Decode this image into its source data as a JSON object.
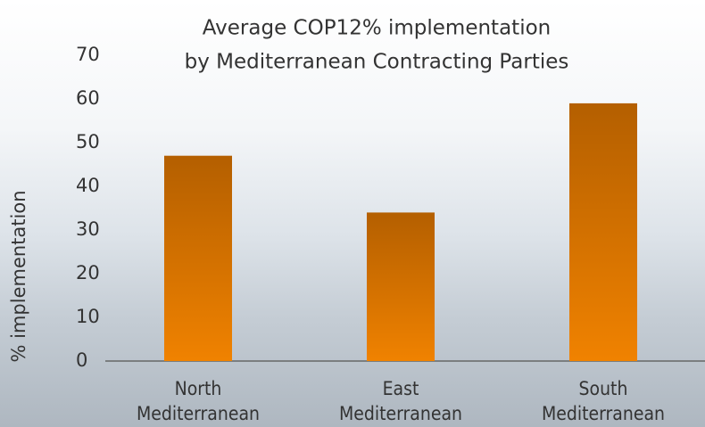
{
  "chart_data": {
    "type": "bar",
    "title": "Average COP12% implementation",
    "subtitle": "by Mediterranean Contracting Parties",
    "y_label": "% implementation",
    "categories": [
      "North Mediterranean",
      "East Mediterranean",
      "South Mediterranean"
    ],
    "values": [
      47,
      34,
      59
    ],
    "color": "#d97300",
    "ylim": [
      0,
      70
    ],
    "yticks": [
      0,
      10,
      20,
      30,
      40,
      50,
      60,
      70
    ],
    "grid": false
  }
}
